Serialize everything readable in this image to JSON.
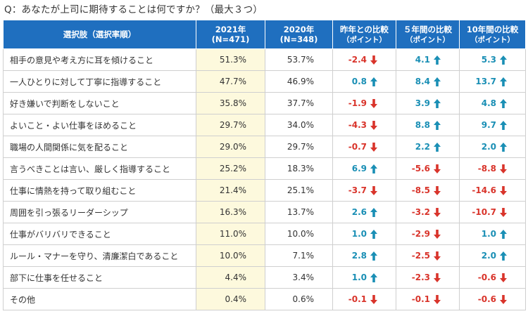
{
  "question": "Q：あなたが上司に期待することは何ですか？（最大３つ）",
  "colors": {
    "header_bg": "#1f6fbf",
    "highlight_2021": "#fdf9dd",
    "up": "#1a8fb5",
    "down": "#d9342b"
  },
  "headers": {
    "item": "選択肢（選択率順）",
    "y2021": [
      "2021年",
      "(N=471)"
    ],
    "y2020": [
      "2020年",
      "(N=348)"
    ],
    "diff_prev": [
      "昨年との比較",
      "（ポイント）"
    ],
    "diff_5y": [
      "５年間の比較",
      "（ポイント）"
    ],
    "diff_10y": [
      "10年間の比較",
      "（ポイント）"
    ]
  },
  "chart_data": {
    "type": "table",
    "title": "Q：あなたが上司に期待することは何ですか？（最大３つ）",
    "columns": [
      "選択肢（選択率順）",
      "2021年 (N=471)",
      "2020年 (N=348)",
      "昨年との比較（ポイント）",
      "５年間の比較（ポイント）",
      "10年間の比較（ポイント）"
    ],
    "rows": [
      {
        "label": "相手の意見や考え方に耳を傾けること",
        "y2021": "51.3%",
        "y2020": "53.7%",
        "diff_prev": -2.4,
        "diff_5y": 4.1,
        "diff_10y": 5.3
      },
      {
        "label": "一人ひとりに対して丁寧に指導すること",
        "y2021": "47.7%",
        "y2020": "46.9%",
        "diff_prev": 0.8,
        "diff_5y": 8.4,
        "diff_10y": 13.7
      },
      {
        "label": "好き嫌いで判断をしないこと",
        "y2021": "35.8%",
        "y2020": "37.7%",
        "diff_prev": -1.9,
        "diff_5y": 3.9,
        "diff_10y": 4.8
      },
      {
        "label": "よいこと・よい仕事をほめること",
        "y2021": "29.7%",
        "y2020": "34.0%",
        "diff_prev": -4.3,
        "diff_5y": 8.8,
        "diff_10y": 9.7
      },
      {
        "label": "職場の人間関係に気を配ること",
        "y2021": "29.0%",
        "y2020": "29.7%",
        "diff_prev": -0.7,
        "diff_5y": 2.2,
        "diff_10y": 2.0
      },
      {
        "label": "言うべきことは言い、厳しく指導すること",
        "y2021": "25.2%",
        "y2020": "18.3%",
        "diff_prev": 6.9,
        "diff_5y": -5.6,
        "diff_10y": -8.8
      },
      {
        "label": "仕事に情熱を持って取り組むこと",
        "y2021": "21.4%",
        "y2020": "25.1%",
        "diff_prev": -3.7,
        "diff_5y": -8.5,
        "diff_10y": -14.6
      },
      {
        "label": "周囲を引っ張るリーダーシップ",
        "y2021": "16.3%",
        "y2020": "13.7%",
        "diff_prev": 2.6,
        "diff_5y": -3.2,
        "diff_10y": -10.7
      },
      {
        "label": "仕事がバリバリできること",
        "y2021": "11.0%",
        "y2020": "10.0%",
        "diff_prev": 1.0,
        "diff_5y": -2.9,
        "diff_10y": 1.0
      },
      {
        "label": "ルール・マナーを守り、清廉潔白であること",
        "y2021": "10.0%",
        "y2020": "7.1%",
        "diff_prev": 2.8,
        "diff_5y": -2.5,
        "diff_10y": 2.0
      },
      {
        "label": "部下に仕事を任せること",
        "y2021": "4.4%",
        "y2020": "3.4%",
        "diff_prev": 1.0,
        "diff_5y": -2.3,
        "diff_10y": -0.6
      },
      {
        "label": "その他",
        "y2021": "0.4%",
        "y2020": "0.6%",
        "diff_prev": -0.1,
        "diff_5y": -0.1,
        "diff_10y": -0.6
      }
    ]
  }
}
